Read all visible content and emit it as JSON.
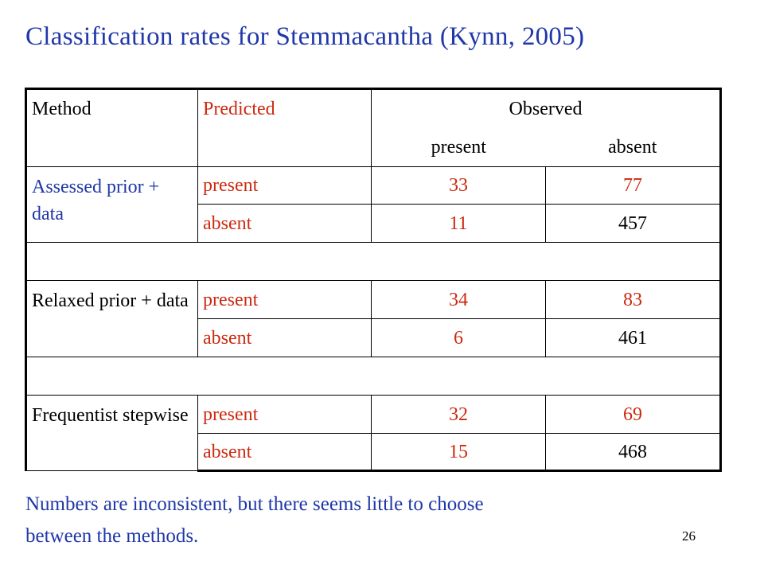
{
  "title": "Classification rates for Stemmacantha (Kynn, 2005)",
  "table": {
    "header": {
      "method": "Method",
      "predicted": "Predicted",
      "observed": "Observed",
      "present": "present",
      "absent": "absent"
    },
    "groups": [
      {
        "method": "Assessed prior + data",
        "rows": [
          {
            "predicted": "present",
            "observed_present": "33",
            "observed_absent": "77"
          },
          {
            "predicted": "absent",
            "observed_present": "11",
            "observed_absent": "457"
          }
        ]
      },
      {
        "method": "Relaxed prior + data",
        "rows": [
          {
            "predicted": "present",
            "observed_present": "34",
            "observed_absent": "83"
          },
          {
            "predicted": "absent",
            "observed_present": "6",
            "observed_absent": "461"
          }
        ]
      },
      {
        "method": "Frequentist stepwise",
        "rows": [
          {
            "predicted": "present",
            "observed_present": "32",
            "observed_absent": "69"
          },
          {
            "predicted": "absent",
            "observed_present": "15",
            "observed_absent": "468"
          }
        ]
      }
    ]
  },
  "footer_line1": "Numbers are inconsistent, but there seems little to choose",
  "footer_line2": "between the methods.",
  "page_number": "26",
  "colors": {
    "accent_blue": "#1f37a8",
    "accent_red": "#cc2a10"
  }
}
